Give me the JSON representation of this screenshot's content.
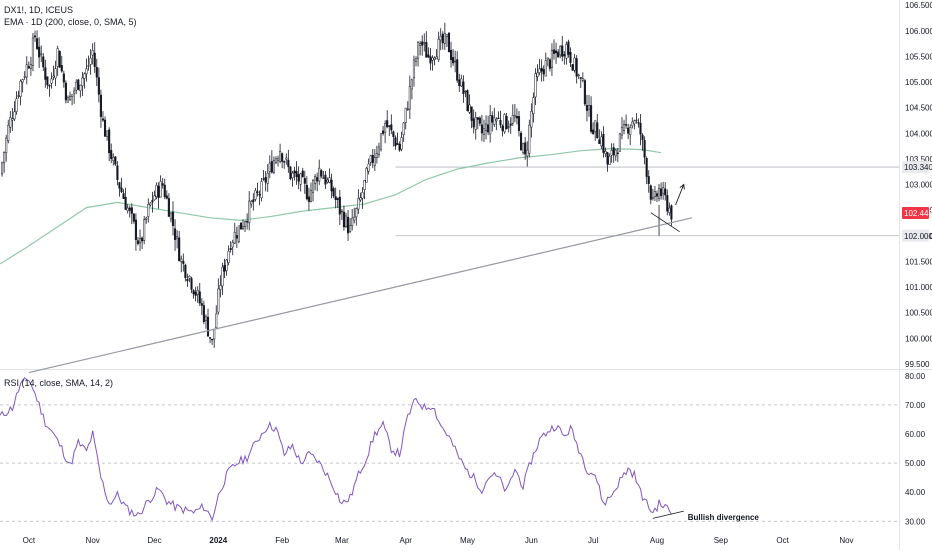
{
  "header": {
    "symbol_line": "DX1!, 1D, ICEUS",
    "indicator_line": "EMA · 1D (200, close, 0, SMA, 5)",
    "rsi_line": "RSI (14, close, SMA, 14, 2)"
  },
  "colors": {
    "up": "#131722",
    "down": "#131722",
    "ema": "#8fc8a9",
    "rsi": "#7e57c2",
    "trendline": "#9598a1",
    "grid_dash": "#b2b5be",
    "last_price": "#f23645",
    "level_tag": "#e9eaee"
  },
  "chart_data": [
    {
      "type": "candlestick",
      "name": "price",
      "y_ticks": [
        "99.500",
        "100.000",
        "100.500",
        "101.000",
        "101.500",
        "102.000",
        "102.500",
        "103.000",
        "103.500",
        "104.000",
        "104.500",
        "105.000",
        "105.500",
        "106.000",
        "106.500"
      ],
      "ylim": [
        99.4,
        106.6
      ],
      "x_ticks": [
        {
          "label": "Oct",
          "day": 2
        },
        {
          "label": "Nov",
          "day": 33
        },
        {
          "label": "Dec",
          "day": 63
        },
        {
          "label": "2024",
          "day": 94
        },
        {
          "label": "Feb",
          "day": 125
        },
        {
          "label": "Mar",
          "day": 154
        },
        {
          "label": "Apr",
          "day": 185
        },
        {
          "label": "May",
          "day": 215
        },
        {
          "label": "Jun",
          "day": 246
        },
        {
          "label": "Jul",
          "day": 276
        },
        {
          "label": "Aug",
          "day": 307
        },
        {
          "label": "Sep",
          "day": 338
        },
        {
          "label": "Oct",
          "day": 368
        },
        {
          "label": "Nov",
          "day": 399
        }
      ],
      "xlim": [
        -12,
        425
      ],
      "close_anchors": [
        [
          -12,
          103.2
        ],
        [
          -8,
          104.1
        ],
        [
          -2,
          105.0
        ],
        [
          3,
          105.5
        ],
        [
          5,
          105.9
        ],
        [
          8,
          105.4
        ],
        [
          12,
          104.9
        ],
        [
          16,
          105.6
        ],
        [
          21,
          104.6
        ],
        [
          26,
          105.0
        ],
        [
          30,
          105.2
        ],
        [
          33,
          105.6
        ],
        [
          38,
          104.2
        ],
        [
          45,
          103.1
        ],
        [
          52,
          102.3
        ],
        [
          56,
          101.8
        ],
        [
          60,
          102.5
        ],
        [
          63,
          102.8
        ],
        [
          67,
          103.0
        ],
        [
          71,
          102.4
        ],
        [
          76,
          101.5
        ],
        [
          80,
          101.2
        ],
        [
          86,
          100.6
        ],
        [
          91,
          99.9
        ],
        [
          95,
          101.1
        ],
        [
          100,
          101.9
        ],
        [
          105,
          102.2
        ],
        [
          110,
          102.6
        ],
        [
          115,
          102.9
        ],
        [
          120,
          103.4
        ],
        [
          124,
          103.7
        ],
        [
          129,
          103.2
        ],
        [
          133,
          103.1
        ],
        [
          138,
          102.8
        ],
        [
          143,
          103.3
        ],
        [
          149,
          102.9
        ],
        [
          153,
          102.5
        ],
        [
          158,
          102.1
        ],
        [
          163,
          102.7
        ],
        [
          167,
          103.3
        ],
        [
          171,
          103.7
        ],
        [
          175,
          104.2
        ],
        [
          178,
          104.0
        ],
        [
          182,
          103.7
        ],
        [
          186,
          104.6
        ],
        [
          189,
          105.3
        ],
        [
          192,
          105.8
        ],
        [
          196,
          105.5
        ],
        [
          201,
          105.7
        ],
        [
          205,
          105.8
        ],
        [
          209,
          105.3
        ],
        [
          213,
          104.8
        ],
        [
          218,
          104.2
        ],
        [
          222,
          104.0
        ],
        [
          228,
          104.3
        ],
        [
          233,
          104.2
        ],
        [
          238,
          104.3
        ],
        [
          243,
          103.5
        ],
        [
          248,
          105.0
        ],
        [
          252,
          105.3
        ],
        [
          255,
          105.4
        ],
        [
          259,
          105.6
        ],
        [
          263,
          105.7
        ],
        [
          266,
          105.4
        ],
        [
          271,
          104.9
        ],
        [
          275,
          104.2
        ],
        [
          280,
          103.9
        ],
        [
          283,
          103.4
        ],
        [
          287,
          103.7
        ],
        [
          292,
          104.1
        ],
        [
          296,
          104.3
        ],
        [
          299,
          104.0
        ],
        [
          302,
          103.3
        ],
        [
          305,
          102.6
        ],
        [
          308,
          102.9
        ],
        [
          311,
          102.7
        ],
        [
          314,
          102.445
        ]
      ],
      "candles_drawn_to_day": 314,
      "ema_200": {
        "points": [
          [
            -12,
            101.45
          ],
          [
            0,
            101.75
          ],
          [
            15,
            102.15
          ],
          [
            30,
            102.55
          ],
          [
            45,
            102.65
          ],
          [
            60,
            102.55
          ],
          [
            75,
            102.45
          ],
          [
            90,
            102.35
          ],
          [
            105,
            102.3
          ],
          [
            120,
            102.38
          ],
          [
            135,
            102.48
          ],
          [
            150,
            102.55
          ],
          [
            165,
            102.62
          ],
          [
            180,
            102.8
          ],
          [
            195,
            103.1
          ],
          [
            210,
            103.3
          ],
          [
            225,
            103.42
          ],
          [
            240,
            103.52
          ],
          [
            255,
            103.58
          ],
          [
            270,
            103.66
          ],
          [
            285,
            103.7
          ],
          [
            300,
            103.68
          ],
          [
            309,
            103.62
          ]
        ]
      },
      "trendline": [
        [
          2,
          99.33
        ],
        [
          324,
          102.35
        ]
      ],
      "divergence_price_line": [
        [
          304,
          102.45
        ],
        [
          318,
          102.08
        ]
      ],
      "arrow": [
        [
          316,
          102.6
        ],
        [
          320,
          103.0
        ]
      ],
      "horizontal_levels": [
        103.34,
        102.0
      ],
      "tags": {
        "level_upper": "103.340",
        "last_price": "102.445",
        "level_lower": "102.000"
      },
      "last_price": 102.445,
      "low_marker": 102.0
    },
    {
      "type": "line",
      "name": "RSI",
      "y_ticks": [
        "30.00",
        "40.00",
        "50.00",
        "60.00",
        "70.00",
        "80.00"
      ],
      "ylim": [
        27,
        82
      ],
      "dashed_levels": [
        70,
        50,
        30
      ],
      "values_anchors": [
        [
          -12,
          66
        ],
        [
          -6,
          69
        ],
        [
          -2,
          77
        ],
        [
          2,
          79
        ],
        [
          6,
          72
        ],
        [
          10,
          64
        ],
        [
          14,
          60
        ],
        [
          18,
          55
        ],
        [
          22,
          49
        ],
        [
          26,
          57
        ],
        [
          30,
          54
        ],
        [
          33,
          60
        ],
        [
          37,
          45
        ],
        [
          41,
          36
        ],
        [
          45,
          39
        ],
        [
          50,
          34
        ],
        [
          55,
          32
        ],
        [
          60,
          37
        ],
        [
          65,
          41
        ],
        [
          69,
          37
        ],
        [
          73,
          35
        ],
        [
          77,
          34
        ],
        [
          82,
          33
        ],
        [
          87,
          35
        ],
        [
          91,
          31
        ],
        [
          95,
          41
        ],
        [
          99,
          47
        ],
        [
          103,
          50
        ],
        [
          108,
          52
        ],
        [
          113,
          58
        ],
        [
          118,
          63
        ],
        [
          122,
          62
        ],
        [
          126,
          53
        ],
        [
          130,
          56
        ],
        [
          134,
          50
        ],
        [
          138,
          53
        ],
        [
          142,
          51
        ],
        [
          146,
          47
        ],
        [
          150,
          42
        ],
        [
          154,
          36
        ],
        [
          158,
          38
        ],
        [
          162,
          46
        ],
        [
          166,
          52
        ],
        [
          170,
          60
        ],
        [
          174,
          63
        ],
        [
          178,
          55
        ],
        [
          182,
          53
        ],
        [
          186,
          66
        ],
        [
          190,
          72
        ],
        [
          194,
          69
        ],
        [
          198,
          70
        ],
        [
          202,
          63
        ],
        [
          206,
          59
        ],
        [
          210,
          53
        ],
        [
          214,
          48
        ],
        [
          218,
          45
        ],
        [
          222,
          41
        ],
        [
          226,
          46
        ],
        [
          230,
          45
        ],
        [
          234,
          40
        ],
        [
          238,
          48
        ],
        [
          242,
          42
        ],
        [
          246,
          51
        ],
        [
          250,
          58
        ],
        [
          254,
          61
        ],
        [
          258,
          63
        ],
        [
          262,
          59
        ],
        [
          265,
          62
        ],
        [
          269,
          55
        ],
        [
          273,
          48
        ],
        [
          277,
          46
        ],
        [
          281,
          36
        ],
        [
          285,
          39
        ],
        [
          289,
          44
        ],
        [
          293,
          48
        ],
        [
          296,
          46
        ],
        [
          299,
          40
        ],
        [
          302,
          36
        ],
        [
          305,
          33
        ],
        [
          308,
          36
        ],
        [
          311,
          35
        ],
        [
          314,
          33
        ]
      ],
      "divergence_rsi_line": [
        [
          305,
          31
        ],
        [
          320,
          33.5
        ]
      ],
      "annotation": "Bullish divergence"
    }
  ]
}
